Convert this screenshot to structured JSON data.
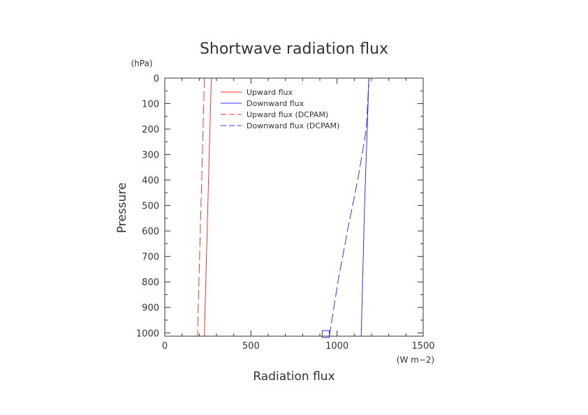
{
  "chart_data": {
    "type": "line",
    "title": "Shortwave radiation flux",
    "xlabel": "Radiation flux",
    "xunit": "(W m−2)",
    "ylabel": "Pressure",
    "yunit": "(hPa)",
    "xlim": [
      0,
      1500
    ],
    "ylim": [
      1013,
      0
    ],
    "y_inverted": true,
    "xticks": [
      0,
      500,
      1000,
      1500
    ],
    "yticks": [
      0,
      100,
      200,
      300,
      400,
      500,
      600,
      700,
      800,
      900,
      1000
    ],
    "grid": false,
    "legend_position": "top-center",
    "series": [
      {
        "name": "Upward flux",
        "color": "#ff3333",
        "dash": "solid",
        "points": [
          [
            270,
            0
          ],
          [
            258,
            300
          ],
          [
            246,
            600
          ],
          [
            234,
            900
          ],
          [
            230,
            1013
          ]
        ]
      },
      {
        "name": "Downward flux",
        "color": "#3333ee",
        "dash": "solid",
        "points": [
          [
            1185,
            0
          ],
          [
            1175,
            200
          ],
          [
            1160,
            500
          ],
          [
            1148,
            800
          ],
          [
            1140,
            1013
          ]
        ]
      },
      {
        "name": "Upward flux (DCPAM)",
        "color": "#ff3333",
        "dash": "dashed",
        "points": [
          [
            230,
            0
          ],
          [
            218,
            300
          ],
          [
            206,
            600
          ],
          [
            194,
            900
          ],
          [
            190,
            1013
          ]
        ]
      },
      {
        "name": "Downward flux (DCPAM)",
        "color": "#3333ee",
        "dash": "dashed",
        "points": [
          [
            1185,
            0
          ],
          [
            1170,
            200
          ],
          [
            1120,
            400
          ],
          [
            1060,
            600
          ],
          [
            1005,
            800
          ],
          [
            955,
            1013
          ]
        ]
      }
    ]
  }
}
